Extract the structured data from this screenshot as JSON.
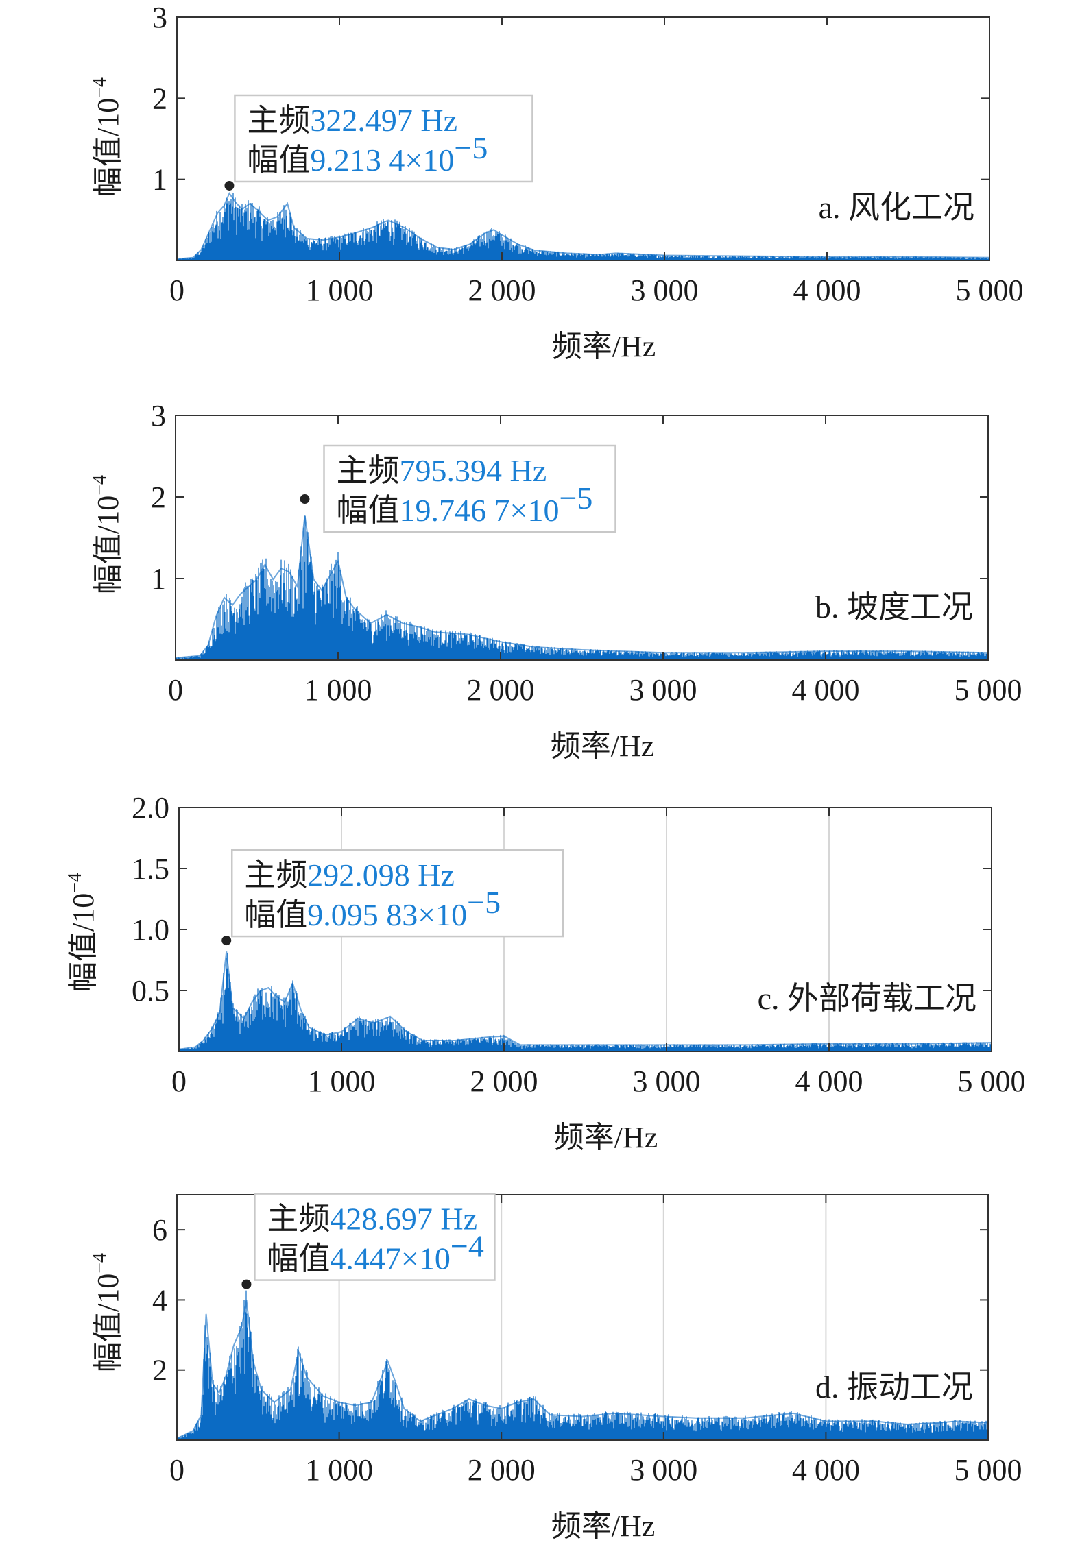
{
  "figure": {
    "panels_count": 4
  },
  "chart_data": [
    {
      "type": "area",
      "panel_label": "a. 风化工况",
      "xlabel": "频率/Hz",
      "ylabel_main": "幅值/10",
      "ylabel_exp": "−4",
      "xlim": [
        0,
        5000
      ],
      "ylim": [
        0,
        3
      ],
      "xticks": [
        0,
        1000,
        2000,
        3000,
        4000,
        5000
      ],
      "xtick_labels": [
        "0",
        "1 000",
        "2 000",
        "3 000",
        "4 000",
        "5 000"
      ],
      "yticks": [
        1,
        2,
        3
      ],
      "ytick_labels": [
        "1",
        "2",
        "3"
      ],
      "grid": false,
      "series_color": "#0b6bc4",
      "peak": {
        "x": 322.497,
        "y": 0.92134
      },
      "annotation": {
        "key1": "主频",
        "val1": "322.497 Hz",
        "key2": "幅值",
        "val2": "9.213 4×10",
        "val2_exp": "−5"
      },
      "envelope": [
        [
          0,
          0.02
        ],
        [
          100,
          0.04
        ],
        [
          150,
          0.15
        ],
        [
          200,
          0.4
        ],
        [
          250,
          0.65
        ],
        [
          290,
          0.75
        ],
        [
          322.5,
          0.92
        ],
        [
          360,
          0.8
        ],
        [
          400,
          0.7
        ],
        [
          450,
          0.78
        ],
        [
          500,
          0.68
        ],
        [
          560,
          0.55
        ],
        [
          620,
          0.6
        ],
        [
          680,
          0.78
        ],
        [
          720,
          0.45
        ],
        [
          800,
          0.3
        ],
        [
          900,
          0.28
        ],
        [
          1000,
          0.32
        ],
        [
          1100,
          0.38
        ],
        [
          1200,
          0.45
        ],
        [
          1300,
          0.55
        ],
        [
          1400,
          0.45
        ],
        [
          1500,
          0.3
        ],
        [
          1600,
          0.18
        ],
        [
          1700,
          0.15
        ],
        [
          1800,
          0.22
        ],
        [
          1900,
          0.38
        ],
        [
          1950,
          0.42
        ],
        [
          2000,
          0.35
        ],
        [
          2100,
          0.22
        ],
        [
          2200,
          0.14
        ],
        [
          2400,
          0.1
        ],
        [
          2600,
          0.08
        ],
        [
          2700,
          0.1
        ],
        [
          2800,
          0.09
        ],
        [
          3000,
          0.07
        ],
        [
          3500,
          0.06
        ],
        [
          4000,
          0.05
        ],
        [
          4500,
          0.05
        ],
        [
          5000,
          0.04
        ]
      ]
    },
    {
      "type": "area",
      "panel_label": "b. 坡度工况",
      "xlabel": "频率/Hz",
      "ylabel_main": "幅值/10",
      "ylabel_exp": "−4",
      "xlim": [
        0,
        5000
      ],
      "ylim": [
        0,
        3
      ],
      "xticks": [
        0,
        1000,
        2000,
        3000,
        4000,
        5000
      ],
      "xtick_labels": [
        "0",
        "1 000",
        "2 000",
        "3 000",
        "4 000",
        "5 000"
      ],
      "yticks": [
        1,
        2,
        3
      ],
      "ytick_labels": [
        "1",
        "2",
        "3"
      ],
      "grid": false,
      "series_color": "#0b6bc4",
      "peak": {
        "x": 795.394,
        "y": 1.97467
      },
      "annotation": {
        "key1": "主频",
        "val1": "795.394 Hz",
        "key2": "幅值",
        "val2": "19.746 7×10",
        "val2_exp": "−5"
      },
      "envelope": [
        [
          0,
          0.03
        ],
        [
          150,
          0.06
        ],
        [
          200,
          0.2
        ],
        [
          250,
          0.6
        ],
        [
          300,
          0.85
        ],
        [
          350,
          0.75
        ],
        [
          400,
          0.9
        ],
        [
          450,
          1.0
        ],
        [
          500,
          1.1
        ],
        [
          550,
          1.3
        ],
        [
          600,
          1.1
        ],
        [
          650,
          1.25
        ],
        [
          700,
          1.2
        ],
        [
          750,
          1.0
        ],
        [
          795.4,
          1.97
        ],
        [
          850,
          1.1
        ],
        [
          900,
          0.95
        ],
        [
          950,
          1.15
        ],
        [
          1000,
          1.35
        ],
        [
          1050,
          0.85
        ],
        [
          1100,
          0.7
        ],
        [
          1200,
          0.5
        ],
        [
          1300,
          0.62
        ],
        [
          1400,
          0.5
        ],
        [
          1500,
          0.45
        ],
        [
          1600,
          0.38
        ],
        [
          1800,
          0.35
        ],
        [
          2000,
          0.25
        ],
        [
          2200,
          0.18
        ],
        [
          2500,
          0.14
        ],
        [
          3000,
          0.1
        ],
        [
          3500,
          0.1
        ],
        [
          4000,
          0.12
        ],
        [
          4500,
          0.12
        ],
        [
          5000,
          0.1
        ]
      ]
    },
    {
      "type": "area",
      "panel_label": "c. 外部荷载工况",
      "xlabel": "频率/Hz",
      "ylabel_main": "幅值/10",
      "ylabel_exp": "−4",
      "xlim": [
        0,
        5000
      ],
      "ylim": [
        0,
        2
      ],
      "xticks": [
        0,
        1000,
        2000,
        3000,
        4000,
        5000
      ],
      "xtick_labels": [
        "0",
        "1 000",
        "2 000",
        "3 000",
        "4 000",
        "5 000"
      ],
      "yticks": [
        0.5,
        1.0,
        1.5,
        2.0
      ],
      "ytick_labels": [
        "0.5",
        "1.0",
        "1.5",
        "2.0"
      ],
      "grid": true,
      "series_color": "#0b6bc4",
      "peak": {
        "x": 292.098,
        "y": 0.909583
      },
      "annotation": {
        "key1": "主频",
        "val1": "292.098 Hz",
        "key2": "幅值",
        "val2": "9.095 83×10",
        "val2_exp": "−5"
      },
      "envelope": [
        [
          0,
          0.02
        ],
        [
          100,
          0.04
        ],
        [
          150,
          0.1
        ],
        [
          200,
          0.2
        ],
        [
          250,
          0.35
        ],
        [
          292.1,
          0.91
        ],
        [
          330,
          0.4
        ],
        [
          400,
          0.3
        ],
        [
          450,
          0.45
        ],
        [
          500,
          0.55
        ],
        [
          550,
          0.58
        ],
        [
          600,
          0.5
        ],
        [
          650,
          0.45
        ],
        [
          700,
          0.62
        ],
        [
          750,
          0.38
        ],
        [
          800,
          0.22
        ],
        [
          900,
          0.15
        ],
        [
          1000,
          0.18
        ],
        [
          1100,
          0.3
        ],
        [
          1200,
          0.26
        ],
        [
          1300,
          0.32
        ],
        [
          1400,
          0.18
        ],
        [
          1500,
          0.1
        ],
        [
          1700,
          0.1
        ],
        [
          1900,
          0.13
        ],
        [
          2000,
          0.14
        ],
        [
          2100,
          0.06
        ],
        [
          2500,
          0.06
        ],
        [
          3000,
          0.06
        ],
        [
          3500,
          0.06
        ],
        [
          4000,
          0.07
        ],
        [
          4500,
          0.07
        ],
        [
          5000,
          0.08
        ]
      ]
    },
    {
      "type": "area",
      "panel_label": "d. 振动工况",
      "xlabel": "频率/Hz",
      "ylabel_main": "幅值/10",
      "ylabel_exp": "−4",
      "xlim": [
        0,
        5000
      ],
      "ylim": [
        0,
        7
      ],
      "xticks": [
        0,
        1000,
        2000,
        3000,
        4000,
        5000
      ],
      "xtick_labels": [
        "0",
        "1 000",
        "2 000",
        "3 000",
        "4 000",
        "5 000"
      ],
      "yticks": [
        2,
        4,
        6
      ],
      "ytick_labels": [
        "2",
        "4",
        "6"
      ],
      "grid": true,
      "series_color": "#0b6bc4",
      "peak": {
        "x": 428.697,
        "y": 4.447
      },
      "annotation": {
        "key1": "主频",
        "val1": "428.697 Hz",
        "key2": "幅值",
        "val2": "4.447×10",
        "val2_exp": "−4"
      },
      "envelope": [
        [
          0,
          0.05
        ],
        [
          100,
          0.3
        ],
        [
          150,
          0.8
        ],
        [
          180,
          4.0
        ],
        [
          220,
          1.8
        ],
        [
          260,
          1.5
        ],
        [
          300,
          2.0
        ],
        [
          350,
          3.0
        ],
        [
          400,
          3.6
        ],
        [
          428.7,
          4.45
        ],
        [
          470,
          2.5
        ],
        [
          520,
          1.6
        ],
        [
          600,
          1.2
        ],
        [
          700,
          1.6
        ],
        [
          750,
          2.8
        ],
        [
          800,
          2.0
        ],
        [
          850,
          1.7
        ],
        [
          900,
          1.4
        ],
        [
          1000,
          1.2
        ],
        [
          1100,
          1.1
        ],
        [
          1200,
          1.2
        ],
        [
          1300,
          2.5
        ],
        [
          1350,
          1.8
        ],
        [
          1400,
          1.0
        ],
        [
          1500,
          0.6
        ],
        [
          1600,
          0.8
        ],
        [
          1700,
          1.0
        ],
        [
          1800,
          1.3
        ],
        [
          1900,
          1.1
        ],
        [
          2000,
          1.0
        ],
        [
          2100,
          1.2
        ],
        [
          2200,
          1.3
        ],
        [
          2300,
          0.8
        ],
        [
          2500,
          0.75
        ],
        [
          2700,
          0.85
        ],
        [
          3000,
          0.75
        ],
        [
          3200,
          0.7
        ],
        [
          3500,
          0.7
        ],
        [
          3800,
          0.85
        ],
        [
          4000,
          0.6
        ],
        [
          4300,
          0.6
        ],
        [
          4500,
          0.5
        ],
        [
          4700,
          0.55
        ],
        [
          4800,
          0.6
        ],
        [
          5000,
          0.55
        ]
      ]
    }
  ]
}
